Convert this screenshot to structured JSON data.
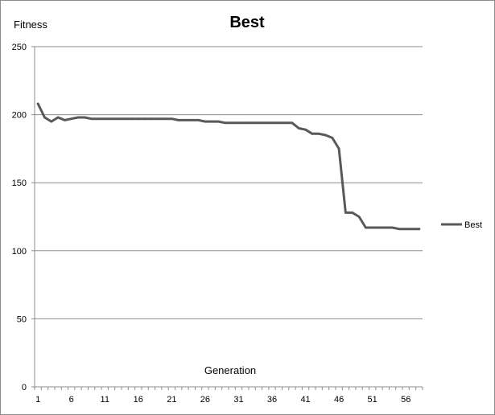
{
  "chart_data": {
    "type": "line",
    "title": "Best",
    "xlabel": "Generation",
    "ylabel": "Fitness",
    "ylim": [
      0,
      250
    ],
    "yticks": [
      "0",
      "50",
      "100",
      "150",
      "200",
      "250"
    ],
    "x": [
      1,
      2,
      3,
      4,
      5,
      6,
      7,
      8,
      9,
      10,
      11,
      12,
      13,
      14,
      15,
      16,
      17,
      18,
      19,
      20,
      21,
      22,
      23,
      24,
      25,
      26,
      27,
      28,
      29,
      30,
      31,
      32,
      33,
      34,
      35,
      36,
      37,
      38,
      39,
      40,
      41,
      42,
      43,
      44,
      45,
      46,
      47,
      48,
      49,
      50,
      51,
      52,
      53,
      54,
      55,
      56,
      57,
      58
    ],
    "xticks": [
      "1",
      "6",
      "11",
      "16",
      "21",
      "26",
      "31",
      "36",
      "41",
      "46",
      "51",
      "56"
    ],
    "series": [
      {
        "name": "Best",
        "color": "#595959",
        "values": [
          208,
          198,
          195,
          198,
          196,
          197,
          198,
          198,
          197,
          197,
          197,
          197,
          197,
          197,
          197,
          197,
          197,
          197,
          197,
          197,
          197,
          196,
          196,
          196,
          196,
          195,
          195,
          195,
          194,
          194,
          194,
          194,
          194,
          194,
          194,
          194,
          194,
          194,
          194,
          190,
          189,
          186,
          186,
          185,
          183,
          175,
          128,
          128,
          125,
          117,
          117,
          117,
          117,
          117,
          116,
          116,
          116,
          116
        ]
      }
    ],
    "grid": "horizontal",
    "legend_position": "right"
  }
}
